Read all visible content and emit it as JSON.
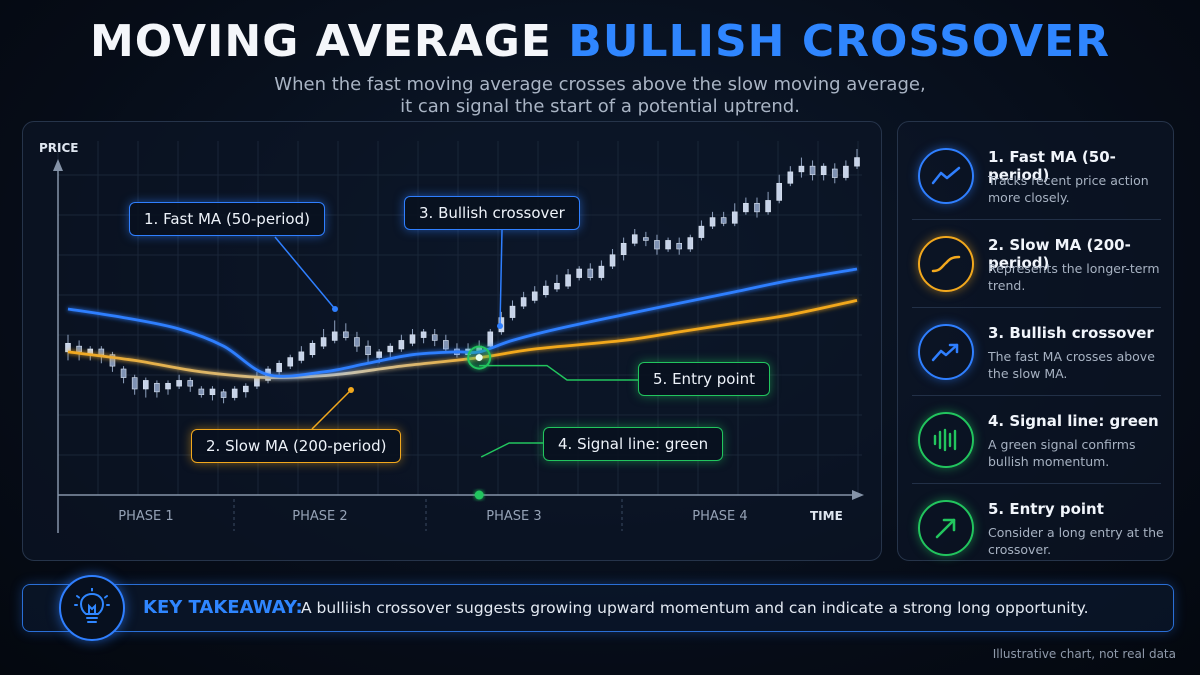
{
  "header": {
    "title_main": "MOVING AVERAGE ",
    "title_accent": "BULLISH CROSSOVER",
    "subtitle_line1": "When the fast moving average crosses above the slow moving average,",
    "subtitle_line2": "it can signal the start of a potential uptrend."
  },
  "chart_data": {
    "type": "line",
    "ylabel": "PRICE",
    "xlabel": "TIME",
    "grid": true,
    "phases": [
      "PHASE 1",
      "PHASE 2",
      "PHASE 3",
      "PHASE 4"
    ],
    "candles": [
      {
        "o": 50,
        "c": 53,
        "h": 56,
        "l": 47
      },
      {
        "o": 52,
        "c": 50,
        "h": 54,
        "l": 47
      },
      {
        "o": 49,
        "c": 51,
        "h": 52,
        "l": 47
      },
      {
        "o": 51,
        "c": 49,
        "h": 52,
        "l": 46
      },
      {
        "o": 49,
        "c": 45,
        "h": 50,
        "l": 43
      },
      {
        "o": 44,
        "c": 41,
        "h": 45,
        "l": 39
      },
      {
        "o": 41,
        "c": 37,
        "h": 42,
        "l": 35
      },
      {
        "o": 37,
        "c": 40,
        "h": 41,
        "l": 34
      },
      {
        "o": 39,
        "c": 36,
        "h": 40,
        "l": 34
      },
      {
        "o": 37,
        "c": 39,
        "h": 40,
        "l": 35
      },
      {
        "o": 38,
        "c": 40,
        "h": 42,
        "l": 37
      },
      {
        "o": 40,
        "c": 38,
        "h": 41,
        "l": 36
      },
      {
        "o": 37,
        "c": 35,
        "h": 38,
        "l": 34
      },
      {
        "o": 35,
        "c": 37,
        "h": 38,
        "l": 33
      },
      {
        "o": 36,
        "c": 34,
        "h": 37,
        "l": 32
      },
      {
        "o": 34,
        "c": 37,
        "h": 38,
        "l": 33
      },
      {
        "o": 36,
        "c": 38,
        "h": 39,
        "l": 34
      },
      {
        "o": 38,
        "c": 41,
        "h": 43,
        "l": 37
      },
      {
        "o": 40,
        "c": 44,
        "h": 45,
        "l": 39
      },
      {
        "o": 43,
        "c": 46,
        "h": 47,
        "l": 42
      },
      {
        "o": 45,
        "c": 48,
        "h": 49,
        "l": 44
      },
      {
        "o": 47,
        "c": 50,
        "h": 52,
        "l": 46
      },
      {
        "o": 49,
        "c": 53,
        "h": 54,
        "l": 48
      },
      {
        "o": 52,
        "c": 55,
        "h": 58,
        "l": 51
      },
      {
        "o": 54,
        "c": 57,
        "h": 61,
        "l": 53
      },
      {
        "o": 57,
        "c": 55,
        "h": 60,
        "l": 54
      },
      {
        "o": 55,
        "c": 52,
        "h": 57,
        "l": 50
      },
      {
        "o": 52,
        "c": 49,
        "h": 54,
        "l": 46
      },
      {
        "o": 48,
        "c": 50,
        "h": 51,
        "l": 46
      },
      {
        "o": 50,
        "c": 52,
        "h": 53,
        "l": 48
      },
      {
        "o": 51,
        "c": 54,
        "h": 56,
        "l": 50
      },
      {
        "o": 53,
        "c": 56,
        "h": 58,
        "l": 52
      },
      {
        "o": 55,
        "c": 57,
        "h": 58,
        "l": 53
      },
      {
        "o": 56,
        "c": 54,
        "h": 58,
        "l": 52
      },
      {
        "o": 54,
        "c": 51,
        "h": 56,
        "l": 50
      },
      {
        "o": 51,
        "c": 49,
        "h": 53,
        "l": 48
      },
      {
        "o": 49,
        "c": 51,
        "h": 53,
        "l": 48
      },
      {
        "o": 50,
        "c": 52,
        "h": 54,
        "l": 49
      },
      {
        "o": 52,
        "c": 57,
        "h": 58,
        "l": 51
      },
      {
        "o": 57,
        "c": 62,
        "h": 64,
        "l": 56
      },
      {
        "o": 62,
        "c": 66,
        "h": 68,
        "l": 61
      },
      {
        "o": 66,
        "c": 69,
        "h": 71,
        "l": 65
      },
      {
        "o": 68,
        "c": 71,
        "h": 73,
        "l": 67
      },
      {
        "o": 70,
        "c": 73,
        "h": 75,
        "l": 69
      },
      {
        "o": 72,
        "c": 74,
        "h": 77,
        "l": 71
      },
      {
        "o": 73,
        "c": 77,
        "h": 79,
        "l": 72
      },
      {
        "o": 76,
        "c": 79,
        "h": 80,
        "l": 75
      },
      {
        "o": 79,
        "c": 76,
        "h": 81,
        "l": 75
      },
      {
        "o": 76,
        "c": 80,
        "h": 82,
        "l": 75
      },
      {
        "o": 80,
        "c": 84,
        "h": 86,
        "l": 79
      },
      {
        "o": 84,
        "c": 88,
        "h": 90,
        "l": 82
      },
      {
        "o": 88,
        "c": 91,
        "h": 93,
        "l": 87
      },
      {
        "o": 90,
        "c": 89,
        "h": 92,
        "l": 87
      },
      {
        "o": 89,
        "c": 86,
        "h": 91,
        "l": 84
      },
      {
        "o": 86,
        "c": 89,
        "h": 90,
        "l": 85
      },
      {
        "o": 88,
        "c": 86,
        "h": 90,
        "l": 84
      },
      {
        "o": 86,
        "c": 90,
        "h": 91,
        "l": 85
      },
      {
        "o": 90,
        "c": 94,
        "h": 96,
        "l": 89
      },
      {
        "o": 94,
        "c": 97,
        "h": 99,
        "l": 93
      },
      {
        "o": 97,
        "c": 95,
        "h": 99,
        "l": 94
      },
      {
        "o": 95,
        "c": 99,
        "h": 102,
        "l": 94
      },
      {
        "o": 99,
        "c": 102,
        "h": 104,
        "l": 98
      },
      {
        "o": 102,
        "c": 99,
        "h": 104,
        "l": 97
      },
      {
        "o": 99,
        "c": 103,
        "h": 106,
        "l": 98
      },
      {
        "o": 103,
        "c": 109,
        "h": 112,
        "l": 102
      },
      {
        "o": 109,
        "c": 113,
        "h": 115,
        "l": 108
      },
      {
        "o": 113,
        "c": 115,
        "h": 118,
        "l": 111
      },
      {
        "o": 115,
        "c": 112,
        "h": 117,
        "l": 110
      },
      {
        "o": 112,
        "c": 115,
        "h": 116,
        "l": 110
      },
      {
        "o": 114,
        "c": 111,
        "h": 116,
        "l": 109
      },
      {
        "o": 111,
        "c": 115,
        "h": 117,
        "l": 110
      },
      {
        "o": 115,
        "c": 118,
        "h": 121,
        "l": 114
      }
    ],
    "fast_ma": [
      [
        0,
        65
      ],
      [
        5,
        62
      ],
      [
        10,
        58
      ],
      [
        14,
        52
      ],
      [
        18,
        42
      ],
      [
        23,
        43
      ],
      [
        27,
        46
      ],
      [
        31,
        49
      ],
      [
        35,
        50
      ],
      [
        37,
        50
      ],
      [
        40,
        54
      ],
      [
        44,
        58
      ],
      [
        50,
        63
      ],
      [
        55,
        67
      ],
      [
        60,
        71
      ],
      [
        65,
        75
      ],
      [
        71,
        79
      ]
    ],
    "slow_ma": [
      [
        0,
        50
      ],
      [
        6,
        47
      ],
      [
        12,
        43
      ],
      [
        18,
        41
      ],
      [
        24,
        42
      ],
      [
        30,
        45
      ],
      [
        37,
        48
      ],
      [
        42,
        51
      ],
      [
        50,
        54
      ],
      [
        55,
        57
      ],
      [
        60,
        60
      ],
      [
        65,
        63
      ],
      [
        71,
        68
      ]
    ],
    "crossover_index": 37,
    "colors": {
      "fast_ma": "#2f7fff",
      "slow_ma": "#f2a81d",
      "signal": "#22c55e",
      "candle": "#aebcd6"
    }
  },
  "callouts": {
    "fast_ma": "1. Fast MA (50-period)",
    "slow_ma": "2. Slow MA (200-period)",
    "crossover": "3. Bullish crossover",
    "signal": "4. Signal line: green",
    "entry": "5. Entry point"
  },
  "legend": {
    "items": [
      {
        "title": "1. Fast MA (50-period)",
        "desc": "Tracks recent price action more closely.",
        "icon": "trend-line-icon",
        "color": "blue"
      },
      {
        "title": "2. Slow MA (200-period)",
        "desc": "Represents the longer-term trend.",
        "icon": "smooth-curve-icon",
        "color": "orange"
      },
      {
        "title": "3. Bullish crossover",
        "desc": "The fast MA crosses above the slow MA.",
        "icon": "trend-up-arrow-icon",
        "color": "blue"
      },
      {
        "title": "4. Signal line: green",
        "desc": "A green signal confirms bullish momentum.",
        "icon": "signal-bars-icon",
        "color": "green"
      },
      {
        "title": "5. Entry point",
        "desc": "Consider a long entry at the crossover.",
        "icon": "diagonal-arrow-icon",
        "color": "green"
      }
    ]
  },
  "takeaway": {
    "label": "KEY TAKEAWAY:",
    "text": "A bulliish crossover suggests growing upward momentum and can indicate a strong long opportunity.",
    "icon": "lightbulb-icon"
  },
  "footnote": "Illustrative chart, not real data"
}
